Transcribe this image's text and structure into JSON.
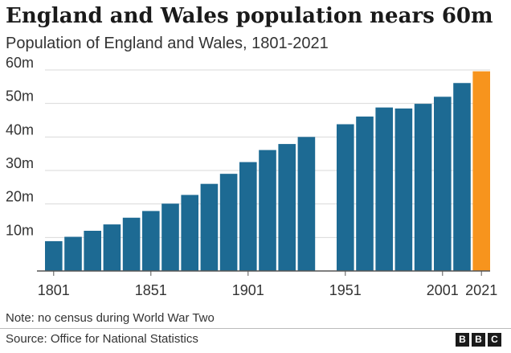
{
  "header": {
    "title": "England and Wales population nears 60m",
    "subtitle": "Population of England and Wales, 1801-2021"
  },
  "footer": {
    "note": "Note: no census during World War Two",
    "source": "Source: Office for National Statistics",
    "logo": [
      "B",
      "B",
      "C"
    ]
  },
  "colors": {
    "bar": "#1d6a93",
    "highlight": "#f7941d",
    "grid": "#d9d9d9",
    "axis": "#555555",
    "text": "#333333"
  },
  "chart_data": {
    "type": "bar",
    "title": "England and Wales population nears 60m",
    "subtitle": "Population of England and Wales, 1801-2021",
    "xlabel": "",
    "ylabel": "",
    "ylim": [
      0,
      60
    ],
    "y_ticks": [
      10,
      20,
      30,
      40,
      50,
      60
    ],
    "y_tick_labels": [
      "10m",
      "20m",
      "30m",
      "40m",
      "50m",
      "60m"
    ],
    "x_tick_labels": [
      "1801",
      "1851",
      "1901",
      "1951",
      "2001",
      "2021"
    ],
    "categories": [
      1801,
      1811,
      1821,
      1831,
      1841,
      1851,
      1861,
      1871,
      1881,
      1891,
      1901,
      1911,
      1921,
      1931,
      1941,
      1951,
      1961,
      1971,
      1981,
      1991,
      2001,
      2011,
      2021
    ],
    "values": [
      8.9,
      10.2,
      12.0,
      13.9,
      15.9,
      17.9,
      20.1,
      22.7,
      26.0,
      29.0,
      32.5,
      36.1,
      37.9,
      40.0,
      null,
      43.8,
      46.1,
      48.8,
      48.5,
      49.9,
      52.0,
      56.1,
      59.6
    ],
    "highlight": 2021,
    "grid": true,
    "legend": "none"
  }
}
